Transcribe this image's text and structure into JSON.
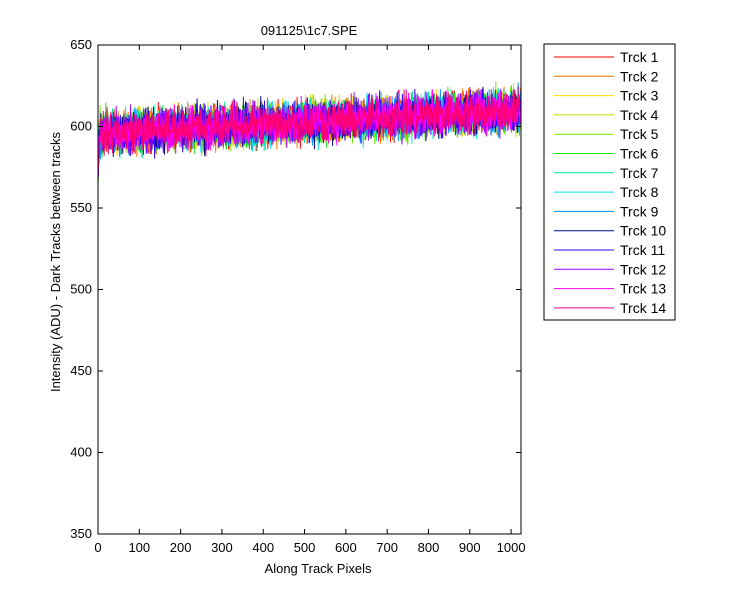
{
  "chart_data": {
    "type": "line",
    "title": "091125\\1c7.SPE",
    "xlabel": "Along Track Pixels",
    "ylabel": "Intensity (ADU) - Dark Tracks between tracks",
    "xlim": [
      0,
      1024
    ],
    "ylim": [
      350,
      650
    ],
    "xticks": [
      0,
      100,
      200,
      300,
      400,
      500,
      600,
      700,
      800,
      900,
      1000
    ],
    "yticks": [
      350,
      400,
      450,
      500,
      550,
      600,
      650
    ],
    "grid": false,
    "legend_position": "outside-right",
    "n_points": 1024,
    "trend": {
      "start": 596,
      "end": 610
    },
    "noise_amplitude": 11,
    "series": [
      {
        "name": "Trck 1",
        "color": "#ff0000"
      },
      {
        "name": "Trck 2",
        "color": "#ff7000"
      },
      {
        "name": "Trck 3",
        "color": "#ffd700"
      },
      {
        "name": "Trck 4",
        "color": "#c8dc00"
      },
      {
        "name": "Trck 5",
        "color": "#7de600"
      },
      {
        "name": "Trck 6",
        "color": "#1ee61e"
      },
      {
        "name": "Trck 7",
        "color": "#00e6a0"
      },
      {
        "name": "Trck 8",
        "color": "#00e6e6"
      },
      {
        "name": "Trck 9",
        "color": "#0090ff"
      },
      {
        "name": "Trck 10",
        "color": "#00007f"
      },
      {
        "name": "Trck 11",
        "color": "#3300ff"
      },
      {
        "name": "Trck 12",
        "color": "#9900ff"
      },
      {
        "name": "Trck 13",
        "color": "#ff00ff"
      },
      {
        "name": "Trck 14",
        "color": "#ff0070"
      }
    ]
  }
}
